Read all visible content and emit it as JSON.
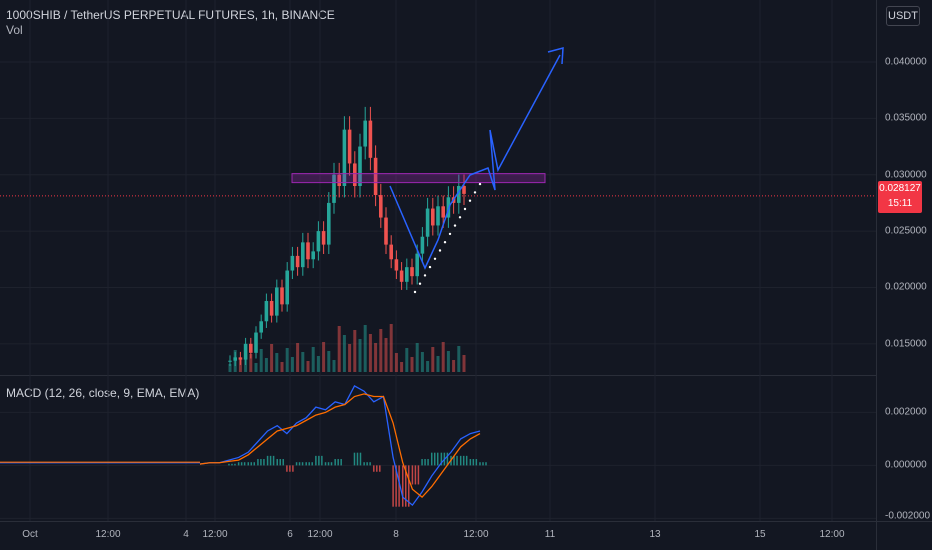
{
  "chart": {
    "symbol_line": "1000SHIB / TetherUS PERPETUAL FUTURES, 1h, BINANCE",
    "vol_label": "Vol",
    "macd_label": "MACD (12, 26, close, 9, EMA, EMA)",
    "currency_button": "USDT",
    "current_price": "0.028127",
    "countdown": "15:11"
  },
  "colors": {
    "up": "#26a69a",
    "down": "#ef5350",
    "macd": "#2962ff",
    "signal": "#ff6d00",
    "zone": "#9c27b0",
    "forecast": "#2962ff",
    "price_line": "#f23645"
  },
  "chart_data": {
    "type": "candlestick",
    "price_axis_ticks": [
      "0.040000",
      "0.035000",
      "0.030000",
      "0.025000",
      "0.020000",
      "0.015000"
    ],
    "price_axis_values": [
      0.04,
      0.035,
      0.03,
      0.025,
      0.02,
      0.015
    ],
    "price_range": [
      0.0125,
      0.0455
    ],
    "macd_axis_ticks": [
      "0.002000",
      "0.000000",
      "-0.002000"
    ],
    "macd_axis_values": [
      0.002,
      0.0,
      -0.002
    ],
    "macd_range": [
      -0.0021,
      0.0033
    ],
    "time_ticks": [
      "Oct",
      "12:00",
      "4",
      "12:00",
      "6",
      "12:00",
      "8",
      "12:00",
      "11",
      "13",
      "15",
      "12:00"
    ],
    "price_path": [
      [
        0,
        0.0135
      ],
      [
        2,
        0.0138
      ],
      [
        4,
        0.0136
      ],
      [
        5,
        0.015
      ],
      [
        6,
        0.0142
      ],
      [
        8,
        0.016
      ],
      [
        9,
        0.017
      ],
      [
        10,
        0.0188
      ],
      [
        11,
        0.0175
      ],
      [
        12,
        0.02
      ],
      [
        13,
        0.0185
      ],
      [
        14,
        0.0215
      ],
      [
        15,
        0.0228
      ],
      [
        16,
        0.0218
      ],
      [
        17,
        0.024
      ],
      [
        18,
        0.0225
      ],
      [
        19,
        0.0232
      ],
      [
        20,
        0.025
      ],
      [
        21,
        0.0238
      ],
      [
        22,
        0.0275
      ],
      [
        23,
        0.03
      ],
      [
        24,
        0.029
      ],
      [
        25,
        0.034
      ],
      [
        26,
        0.031
      ],
      [
        27,
        0.029
      ],
      [
        28,
        0.0325
      ],
      [
        29,
        0.0348
      ],
      [
        30,
        0.0315
      ],
      [
        31,
        0.0282
      ],
      [
        32,
        0.0262
      ],
      [
        33,
        0.0238
      ],
      [
        34,
        0.0225
      ],
      [
        35,
        0.0215
      ],
      [
        36,
        0.0205
      ],
      [
        37,
        0.0218
      ],
      [
        38,
        0.021
      ],
      [
        39,
        0.023
      ],
      [
        40,
        0.0245
      ],
      [
        41,
        0.027
      ],
      [
        42,
        0.0255
      ],
      [
        43,
        0.0272
      ],
      [
        44,
        0.0262
      ],
      [
        45,
        0.028
      ],
      [
        46,
        0.0275
      ],
      [
        47,
        0.029
      ],
      [
        48,
        0.0283
      ]
    ],
    "resistance_zone": [
      0.0293,
      0.0301
    ],
    "current_price_value": 0.028127,
    "forecast_path": [
      [
        0.0213,
        0.0215
      ],
      [
        0.0258,
        0.0245
      ],
      [
        0.0288,
        0.0298
      ],
      [
        0.03,
        0.0333
      ],
      [
        0.0315,
        0.03
      ],
      [
        0.0355,
        0.0395
      ]
    ],
    "macd_series": [
      5e-05,
      0.0001,
      0.0001,
      0.0002,
      0.0003,
      0.0005,
      0.0009,
      0.0013,
      0.0015,
      0.0012,
      0.0016,
      0.0018,
      0.0022,
      0.0021,
      0.0024,
      0.0023,
      0.003,
      0.0028,
      0.0024,
      0.0026,
      0.0003,
      -0.0012,
      -0.0015,
      -0.001,
      -0.0004,
      0.0001,
      0.0005,
      0.001,
      0.0012,
      0.0013
    ],
    "signal_series": [
      5e-05,
      0.0001,
      0.0001,
      0.00015,
      0.0002,
      0.0004,
      0.0007,
      0.001,
      0.0013,
      0.0014,
      0.0015,
      0.0017,
      0.0019,
      0.002,
      0.0022,
      0.0023,
      0.0026,
      0.0027,
      0.0026,
      0.0026,
      0.0016,
      0.0001,
      -0.0009,
      -0.0012,
      -0.0008,
      -0.0003,
      0.0002,
      0.0007,
      0.001,
      0.0012
    ]
  }
}
